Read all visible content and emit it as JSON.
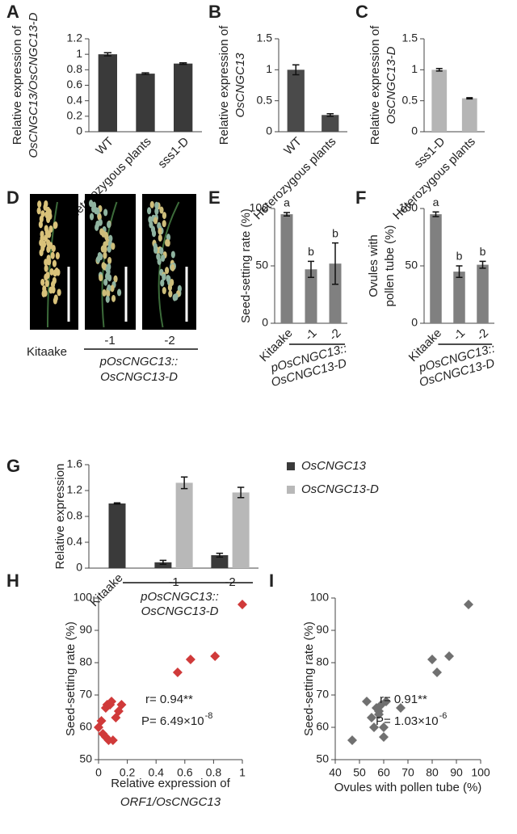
{
  "chart_data": [
    {
      "type": "bar",
      "panel_label": "A",
      "ylabel": [
        "Relative expression of",
        "OsCNGC13/OsCNGC13-D"
      ],
      "categories": [
        "WT",
        "Heterozygous plants",
        "sss1-D"
      ],
      "values": [
        1.0,
        0.75,
        0.88
      ],
      "errors": [
        0.02,
        0.01,
        0.01
      ],
      "color": "#3a3a3a",
      "ylim": [
        0,
        1.2
      ],
      "yticks": [
        0,
        0.2,
        0.4,
        0.6,
        0.8,
        1,
        1.2
      ]
    },
    {
      "type": "bar",
      "panel_label": "B",
      "ylabel": [
        "Relative expression of",
        "OsCNGC13"
      ],
      "categories": [
        "WT",
        "Heterozygous plants"
      ],
      "values": [
        1.0,
        0.27
      ],
      "errors": [
        0.08,
        0.02
      ],
      "color": "#4a4a4a",
      "ylim": [
        0,
        1.5
      ],
      "yticks": [
        0,
        0.5,
        1,
        1.5
      ]
    },
    {
      "type": "bar",
      "panel_label": "C",
      "ylabel": [
        "Relative expression of",
        "OsCNGC13-D"
      ],
      "categories": [
        "sss1-D",
        "Heterozygous plants"
      ],
      "values": [
        1.0,
        0.54
      ],
      "errors": [
        0.02,
        0.01
      ],
      "color": "#b5b5b5",
      "ylim": [
        0,
        1.5
      ],
      "yticks": [
        0,
        0.5,
        1,
        1.5
      ]
    },
    {
      "type": "bar",
      "panel_label": "E",
      "ylabel": [
        "Seed-setting rate (%)"
      ],
      "categories": [
        "Kitaake",
        "-1",
        "-2"
      ],
      "group_label": [
        "pOsCNGC13::",
        "OsCNGC13-D"
      ],
      "values": [
        95,
        47,
        52
      ],
      "errors": [
        1.5,
        7,
        18
      ],
      "annotations": [
        "a",
        "b",
        "b"
      ],
      "color": "#808080",
      "ylim": [
        0,
        100
      ],
      "yticks": [
        0,
        50,
        100
      ]
    },
    {
      "type": "bar",
      "panel_label": "F",
      "ylabel": [
        "Ovules with",
        "pollen tube (%)"
      ],
      "categories": [
        "Kitaake",
        "-1",
        "-2"
      ],
      "group_label": [
        "pOsCNGC13::",
        "OsCNGC13-D"
      ],
      "values": [
        95,
        45,
        51
      ],
      "errors": [
        2,
        5,
        3
      ],
      "annotations": [
        "a",
        "b",
        "b"
      ],
      "color": "#808080",
      "ylim": [
        0,
        100
      ],
      "yticks": [
        0,
        50,
        100
      ]
    },
    {
      "type": "bar",
      "panel_label": "G",
      "ylabel": [
        "Relative expression"
      ],
      "categories": [
        "Kitaake",
        "-1",
        "-2"
      ],
      "group_label": [
        "pOsCNGC13::",
        "OsCNGC13-D"
      ],
      "series": [
        {
          "name": "OsCNGC13",
          "color": "#3a3a3a",
          "values": [
            1.0,
            0.09,
            0.2
          ],
          "errors": [
            0.01,
            0.03,
            0.03
          ]
        },
        {
          "name": "OsCNGC13-D",
          "color": "#b8b8b8",
          "values": [
            null,
            1.32,
            1.17
          ],
          "errors": [
            null,
            0.09,
            0.08
          ]
        }
      ],
      "ylim": [
        0,
        1.6
      ],
      "yticks": [
        0,
        0.4,
        0.8,
        1.2,
        1.6
      ]
    },
    {
      "type": "scatter",
      "panel_label": "H",
      "ylabel": [
        "Seed-setting rate (%)"
      ],
      "xlabel": [
        "Relative expression of",
        "ORF1/OsCNGC13"
      ],
      "color": "#d03a3a",
      "x": [
        0.0,
        0.02,
        0.03,
        0.05,
        0.06,
        0.07,
        0.08,
        0.1,
        0.12,
        0.14,
        0.16,
        0.05,
        0.09,
        0.55,
        0.64,
        0.81,
        1.0
      ],
      "y": [
        60,
        62,
        58,
        66,
        67,
        56,
        67,
        56,
        63,
        65,
        67,
        57,
        68,
        77,
        81,
        82,
        98
      ],
      "stats": {
        "r": "r= 0.94**",
        "p": "P= 6.49×10",
        "p_exponent": "-8"
      },
      "xlim": [
        0,
        1
      ],
      "xticks": [
        0,
        0.2,
        0.4,
        0.6,
        0.8,
        1
      ],
      "ylim": [
        50,
        100
      ],
      "yticks": [
        50,
        60,
        70,
        80,
        90,
        100
      ]
    },
    {
      "type": "scatter",
      "panel_label": "I",
      "ylabel": [
        "Seed-setting rate (%)"
      ],
      "xlabel": [
        "Ovules with pollen tube (%)"
      ],
      "color": "#707070",
      "x": [
        47,
        53,
        55,
        56,
        57,
        58,
        59,
        60,
        61,
        67,
        80,
        82,
        87,
        95,
        60,
        58
      ],
      "y": [
        56,
        68,
        63,
        60,
        66,
        64,
        67,
        57,
        68,
        66,
        81,
        77,
        82,
        98,
        60,
        65
      ],
      "stats": {
        "r": "r= 0.91**",
        "p": "P= 1.03×10",
        "p_exponent": "-6"
      },
      "xlim": [
        40,
        100
      ],
      "xticks": [
        40,
        50,
        60,
        70,
        80,
        90,
        100
      ],
      "ylim": [
        50,
        100
      ],
      "yticks": [
        50,
        60,
        70,
        80,
        90,
        100
      ]
    }
  ],
  "image_panel": {
    "panel_label": "D",
    "categories": [
      "Kitaake",
      "-1",
      "-2"
    ],
    "group_label": [
      "pOsCNGC13::",
      "OsCNGC13-D"
    ]
  }
}
